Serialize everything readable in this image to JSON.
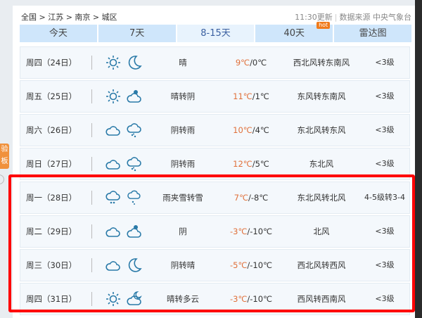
{
  "breadcrumb": "全国 > 江苏 > 南京 > 城区",
  "update_time": "11:30更新",
  "source": "数据来源 中央气象台",
  "side_tab": "验板",
  "tabs": [
    {
      "label": "今天"
    },
    {
      "label": "7天"
    },
    {
      "label": "8-15天",
      "active": true
    },
    {
      "label": "40天",
      "badge": "hot"
    },
    {
      "label": "雷达图"
    }
  ],
  "colors": {
    "accent": "#cfe6fb",
    "high_temp": "#e0703a",
    "icon": "#2a7aa8",
    "highlight_box": "#ff0000"
  },
  "days": [
    {
      "date": "周四（24日）",
      "icons": [
        "sun",
        "moon"
      ],
      "desc": "晴",
      "high": "9℃",
      "low": "/0℃",
      "wind": "西北风转东南风",
      "level": "<3级"
    },
    {
      "date": "周五（25日）",
      "icons": [
        "sun",
        "cloud-sun"
      ],
      "desc": "晴转阴",
      "high": "11℃",
      "low": "/1℃",
      "wind": "东风转东南风",
      "level": "<3级"
    },
    {
      "date": "周六（26日）",
      "icons": [
        "cloud",
        "cloud-rain"
      ],
      "desc": "阴转雨",
      "high": "10℃",
      "low": "/4℃",
      "wind": "东北风转东风",
      "level": "<3级"
    },
    {
      "date": "周日（27日）",
      "icons": [
        "cloud",
        "cloud-rain"
      ],
      "desc": "阴转雨",
      "high": "12℃",
      "low": "/5℃",
      "wind": "东北风",
      "level": "<3级"
    },
    {
      "date": "周一（28日）",
      "icons": [
        "cloud-snow",
        "cloud-snow-small"
      ],
      "desc": "雨夹雪转雪",
      "high": "7℃",
      "low": "/-8℃",
      "wind": "东北风转北风",
      "level": "4-5级转3-4"
    },
    {
      "date": "周二（29日）",
      "icons": [
        "cloud",
        "cloud-sun"
      ],
      "desc": "阴",
      "high": "-3℃",
      "low": "/-10℃",
      "wind": "北风",
      "level": "<3级"
    },
    {
      "date": "周三（30日）",
      "icons": [
        "cloud",
        "moon"
      ],
      "desc": "阴转晴",
      "high": "-5℃",
      "low": "/-10℃",
      "wind": "西北风转西风",
      "level": "<3级"
    },
    {
      "date": "周四（31日）",
      "icons": [
        "sun",
        "cloud-moon"
      ],
      "desc": "晴转多云",
      "high": "-3℃",
      "low": "/-10℃",
      "wind": "西风转西南风",
      "level": "<3级"
    }
  ]
}
